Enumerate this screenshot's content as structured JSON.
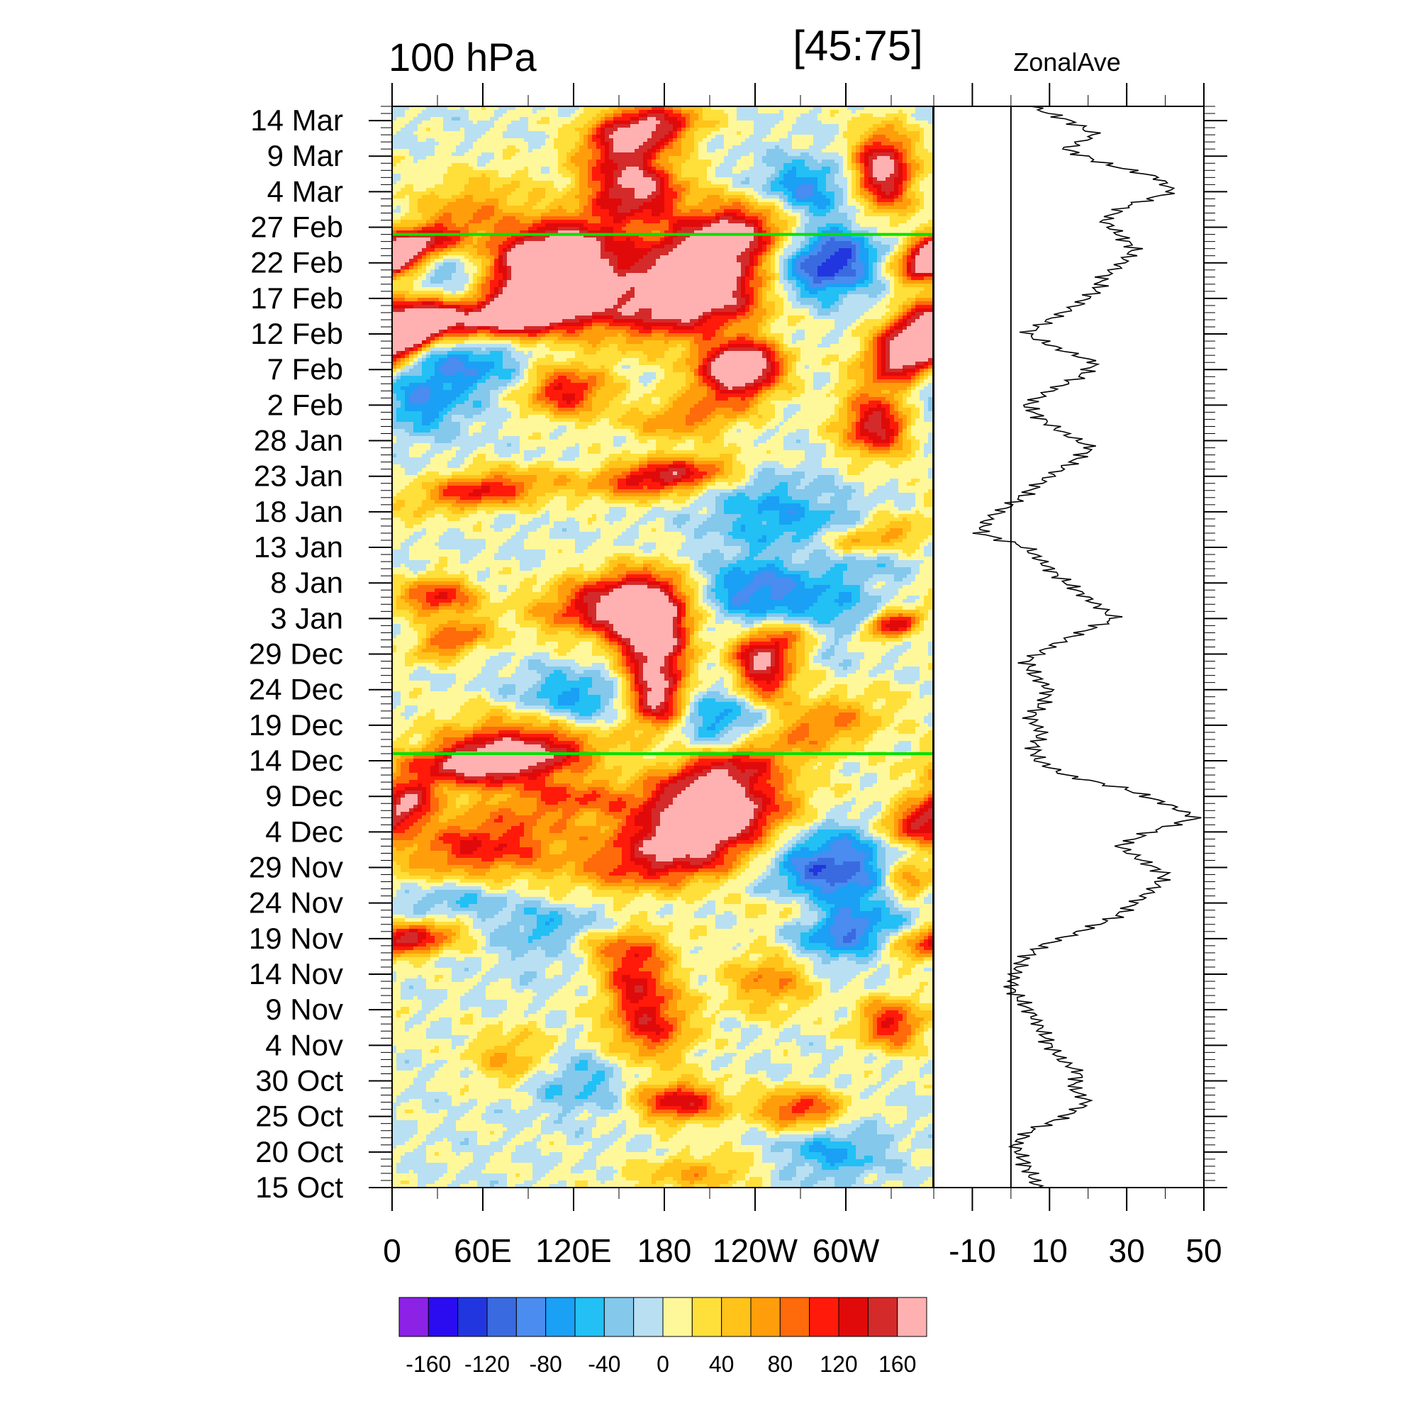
{
  "title_left": "100 hPa",
  "title_center": "[45:75]",
  "zonal_title": "ZonalAve",
  "colors": {
    "frame": "#000000",
    "event_line": "#00e000",
    "palette": [
      "#8b22e6",
      "#2b0bf0",
      "#2236e0",
      "#3a6ae0",
      "#4a8cf0",
      "#1aa0f5",
      "#22c0f5",
      "#84c8ec",
      "#b8e0f2",
      "#fff89a",
      "#ffdf3a",
      "#ffc31a",
      "#ff9e0a",
      "#ff6a0a",
      "#ff1a0a",
      "#e00a0a",
      "#d42a2a",
      "#ffb0b0"
    ],
    "filled_shade": "#ffff88"
  },
  "chart_data": [
    {
      "type": "heatmap",
      "description": "Hovmoller longitude-time contour plot",
      "title": "100 hPa",
      "subtitle": "[45:75]",
      "x_tick_labels": [
        "0",
        "60E",
        "120E",
        "180",
        "120W",
        "60W"
      ],
      "x_ticks_deg": [
        0,
        60,
        120,
        180,
        240,
        300
      ],
      "x_range_deg": [
        0,
        360
      ],
      "y_tick_labels": [
        "15 Oct",
        "20 Oct",
        "25 Oct",
        "30 Oct",
        "4 Nov",
        "9 Nov",
        "14 Nov",
        "19 Nov",
        "24 Nov",
        "29 Nov",
        "4 Dec",
        "9 Dec",
        "14 Dec",
        "19 Dec",
        "24 Dec",
        "29 Dec",
        "3 Jan",
        "8 Jan",
        "13 Jan",
        "18 Jan",
        "23 Jan",
        "28 Jan",
        "2 Feb",
        "7 Feb",
        "12 Feb",
        "17 Feb",
        "22 Feb",
        "27 Feb",
        "4 Mar",
        "9 Mar",
        "14 Mar"
      ],
      "y_range_days": [
        0,
        152
      ],
      "highlight_dates": [
        "15 Dec",
        "26 Feb"
      ],
      "colorbar": {
        "labels": [
          "-160",
          "-120",
          "-80",
          "-40",
          "0",
          "40",
          "80",
          "120",
          "160"
        ],
        "levels": [
          -160,
          -140,
          -120,
          -100,
          -80,
          -60,
          -40,
          -20,
          0,
          20,
          40,
          60,
          80,
          100,
          120,
          140,
          160
        ]
      },
      "blobs": [
        {
          "day": 149,
          "lon": 170,
          "amp": 150,
          "wlon": 22,
          "wday": 2.5,
          "tilt": 3
        },
        {
          "day": 145,
          "lon": 150,
          "amp": 90,
          "wlon": 20,
          "wday": 4,
          "tilt": 0
        },
        {
          "day": 140,
          "lon": 165,
          "amp": 130,
          "wlon": 22,
          "wday": 3,
          "tilt": 0
        },
        {
          "day": 143,
          "lon": 325,
          "amp": 180,
          "wlon": 14,
          "wday": 4,
          "tilt": 0
        },
        {
          "day": 137,
          "lon": 50,
          "amp": 70,
          "wlon": 28,
          "wday": 4,
          "tilt": 2
        },
        {
          "day": 132,
          "lon": 10,
          "amp": 170,
          "wlon": 18,
          "wday": 2,
          "tilt": 5
        },
        {
          "day": 131,
          "lon": 100,
          "amp": 190,
          "wlon": 30,
          "wday": 4,
          "tilt": 4
        },
        {
          "day": 133,
          "lon": 215,
          "amp": 200,
          "wlon": 28,
          "wday": 4,
          "tilt": 4
        },
        {
          "day": 130,
          "lon": 355,
          "amp": 150,
          "wlon": 12,
          "wday": 2,
          "tilt": 2
        },
        {
          "day": 126,
          "lon": 110,
          "amp": 180,
          "wlon": 28,
          "wday": 4,
          "tilt": 3
        },
        {
          "day": 125,
          "lon": 200,
          "amp": 200,
          "wlon": 40,
          "wday": 4,
          "tilt": 4
        },
        {
          "day": 122,
          "lon": 60,
          "amp": 150,
          "wlon": 35,
          "wday": 2,
          "tilt": 6
        },
        {
          "day": 120,
          "lon": 10,
          "amp": 170,
          "wlon": 15,
          "wday": 3,
          "tilt": 4
        },
        {
          "day": 119,
          "lon": 345,
          "amp": 200,
          "wlon": 18,
          "wday": 4,
          "tilt": 3
        },
        {
          "day": 116,
          "lon": 235,
          "amp": 130,
          "wlon": 16,
          "wday": 2,
          "tilt": 0
        },
        {
          "day": 114,
          "lon": 225,
          "amp": 150,
          "wlon": 20,
          "wday": 3,
          "tilt": 0
        },
        {
          "day": 112,
          "lon": 115,
          "amp": 130,
          "wlon": 20,
          "wday": 2.5,
          "tilt": 0
        },
        {
          "day": 107,
          "lon": 320,
          "amp": 150,
          "wlon": 16,
          "wday": 3,
          "tilt": 0
        },
        {
          "day": 108,
          "lon": 190,
          "amp": 80,
          "wlon": 25,
          "wday": 2,
          "tilt": 2
        },
        {
          "day": 100,
          "lon": 180,
          "amp": 150,
          "wlon": 30,
          "wday": 2,
          "tilt": 6
        },
        {
          "day": 98,
          "lon": 60,
          "amp": 120,
          "wlon": 30,
          "wday": 2,
          "tilt": 6
        },
        {
          "day": 91,
          "lon": 310,
          "amp": 120,
          "wlon": 25,
          "wday": 2,
          "tilt": 6
        },
        {
          "day": 83,
          "lon": 30,
          "amp": 120,
          "wlon": 18,
          "wday": 2,
          "tilt": 0
        },
        {
          "day": 82,
          "lon": 140,
          "amp": 140,
          "wlon": 30,
          "wday": 3,
          "tilt": 2
        },
        {
          "day": 80,
          "lon": 170,
          "amp": 190,
          "wlon": 18,
          "wday": 4,
          "tilt": 0
        },
        {
          "day": 77,
          "lon": 40,
          "amp": 100,
          "wlon": 16,
          "wday": 2,
          "tilt": 4
        },
        {
          "day": 78,
          "lon": 270,
          "amp": 80,
          "wlon": 20,
          "wday": 2,
          "tilt": 4
        },
        {
          "day": 79,
          "lon": 330,
          "amp": 140,
          "wlon": 12,
          "wday": 1.5,
          "tilt": 4
        },
        {
          "day": 75,
          "lon": 245,
          "amp": 120,
          "wlon": 14,
          "wday": 2,
          "tilt": 0
        },
        {
          "day": 73,
          "lon": 175,
          "amp": 110,
          "wlon": 15,
          "wday": 4,
          "tilt": 0
        },
        {
          "day": 71,
          "lon": 245,
          "amp": 130,
          "wlon": 16,
          "wday": 2.5,
          "tilt": 0
        },
        {
          "day": 68,
          "lon": 175,
          "amp": 140,
          "wlon": 15,
          "wday": 3,
          "tilt": 0
        },
        {
          "day": 65,
          "lon": 90,
          "amp": 80,
          "wlon": 40,
          "wday": 3,
          "tilt": 3
        },
        {
          "day": 65,
          "lon": 280,
          "amp": 90,
          "wlon": 30,
          "wday": 3,
          "tilt": 4
        },
        {
          "day": 60,
          "lon": 70,
          "amp": 200,
          "wlon": 40,
          "wday": 2.5,
          "tilt": 6
        },
        {
          "day": 58,
          "lon": 215,
          "amp": 160,
          "wlon": 28,
          "wday": 3,
          "tilt": 4
        },
        {
          "day": 55,
          "lon": 120,
          "amp": 80,
          "wlon": 30,
          "wday": 2,
          "tilt": 0
        },
        {
          "day": 54,
          "lon": 10,
          "amp": 150,
          "wlon": 12,
          "wday": 2,
          "tilt": 0
        },
        {
          "day": 52,
          "lon": 210,
          "amp": 200,
          "wlon": 35,
          "wday": 3,
          "tilt": 4
        },
        {
          "day": 51,
          "lon": 345,
          "amp": 130,
          "wlon": 15,
          "wday": 2,
          "tilt": 0
        },
        {
          "day": 48,
          "lon": 60,
          "amp": 120,
          "wlon": 40,
          "wday": 4,
          "tilt": 3
        },
        {
          "day": 46,
          "lon": 185,
          "amp": 130,
          "wlon": 40,
          "wday": 3,
          "tilt": 5
        },
        {
          "day": 43,
          "lon": 340,
          "amp": 80,
          "wlon": 12,
          "wday": 2,
          "tilt": 0
        },
        {
          "day": 39,
          "lon": 270,
          "amp": 60,
          "wlon": 25,
          "wday": 2,
          "tilt": 0
        },
        {
          "day": 35,
          "lon": 10,
          "amp": 150,
          "wlon": 25,
          "wday": 2,
          "tilt": 6
        },
        {
          "day": 34,
          "lon": 140,
          "amp": 80,
          "wlon": 30,
          "wday": 2,
          "tilt": 2
        },
        {
          "day": 30,
          "lon": 160,
          "amp": 100,
          "wlon": 15,
          "wday": 3,
          "tilt": 0
        },
        {
          "day": 29,
          "lon": 250,
          "amp": 80,
          "wlon": 20,
          "wday": 3,
          "tilt": 0
        },
        {
          "day": 23,
          "lon": 170,
          "amp": 120,
          "wlon": 20,
          "wday": 4,
          "tilt": 0
        },
        {
          "day": 23,
          "lon": 330,
          "amp": 120,
          "wlon": 16,
          "wday": 2.5,
          "tilt": 0
        },
        {
          "day": 18,
          "lon": 80,
          "amp": 70,
          "wlon": 20,
          "wday": 3,
          "tilt": 0
        },
        {
          "day": 12,
          "lon": 190,
          "amp": 140,
          "wlon": 20,
          "wday": 2,
          "tilt": 0
        },
        {
          "day": 11,
          "lon": 270,
          "amp": 120,
          "wlon": 20,
          "wday": 2,
          "tilt": 0
        },
        {
          "day": 2,
          "lon": 200,
          "amp": 60,
          "wlon": 30,
          "wday": 2,
          "tilt": 4
        },
        {
          "day": 140,
          "lon": 270,
          "amp": -100,
          "wlon": 22,
          "wday": 3,
          "tilt": 0
        },
        {
          "day": 131,
          "lon": 295,
          "amp": -110,
          "wlon": 20,
          "wday": 3,
          "tilt": 0
        },
        {
          "day": 128,
          "lon": 45,
          "amp": -90,
          "wlon": 22,
          "wday": 3,
          "tilt": 0
        },
        {
          "day": 128,
          "lon": 270,
          "amp": -100,
          "wlon": 24,
          "wday": 3,
          "tilt": 0
        },
        {
          "day": 116,
          "lon": 50,
          "amp": -80,
          "wlon": 30,
          "wday": 3,
          "tilt": 0
        },
        {
          "day": 110,
          "lon": 20,
          "amp": -70,
          "wlon": 20,
          "wday": 3,
          "tilt": 0
        },
        {
          "day": 95,
          "lon": 250,
          "amp": -60,
          "wlon": 30,
          "wday": 4,
          "tilt": 0
        },
        {
          "day": 90,
          "lon": 300,
          "amp": -70,
          "wlon": 25,
          "wday": 3,
          "tilt": 0
        },
        {
          "day": 84,
          "lon": 240,
          "amp": -90,
          "wlon": 25,
          "wday": 3,
          "tilt": 0
        },
        {
          "day": 80,
          "lon": 290,
          "amp": -80,
          "wlon": 20,
          "wday": 3,
          "tilt": 0
        },
        {
          "day": 68,
          "lon": 120,
          "amp": -100,
          "wlon": 30,
          "wday": 3,
          "tilt": 0
        },
        {
          "day": 66,
          "lon": 220,
          "amp": -80,
          "wlon": 30,
          "wday": 4,
          "tilt": 0
        },
        {
          "day": 45,
          "lon": 290,
          "amp": -120,
          "wlon": 30,
          "wday": 4,
          "tilt": 0
        },
        {
          "day": 40,
          "lon": 40,
          "amp": -60,
          "wlon": 30,
          "wday": 3,
          "tilt": 0
        },
        {
          "day": 36,
          "lon": 300,
          "amp": -100,
          "wlon": 25,
          "wday": 3,
          "tilt": 0
        },
        {
          "day": 35,
          "lon": 110,
          "amp": -70,
          "wlon": 25,
          "wday": 3,
          "tilt": 0
        },
        {
          "day": 15,
          "lon": 120,
          "amp": -50,
          "wlon": 30,
          "wday": 3,
          "tilt": 0
        },
        {
          "day": 5,
          "lon": 290,
          "amp": -60,
          "wlon": 25,
          "wday": 3,
          "tilt": 0
        }
      ]
    },
    {
      "type": "line",
      "title": "ZonalAve",
      "x_tick_labels": [
        "-10",
        "10",
        "30",
        "50"
      ],
      "x_ticks": [
        -10,
        10,
        30,
        50
      ],
      "xlim": [
        -20,
        50
      ],
      "zero_line": 0,
      "series": [
        {
          "day": [
            0,
            2,
            4,
            6,
            8,
            10,
            12,
            14,
            16,
            18,
            20,
            22,
            24,
            26,
            28,
            30,
            32,
            34,
            36,
            38,
            40,
            42,
            44,
            46,
            48,
            50,
            52,
            54,
            56,
            58,
            60,
            62,
            64,
            66,
            68,
            70,
            72,
            74,
            76,
            78,
            80,
            82,
            84,
            86,
            88,
            90,
            92,
            94,
            96,
            98,
            100,
            102,
            104,
            106,
            108,
            110,
            112,
            114,
            116,
            118,
            120,
            122,
            124,
            126,
            128,
            130,
            132,
            134,
            136,
            138,
            140,
            142,
            144,
            146,
            148,
            150,
            152
          ],
          "value": [
            7,
            5,
            3,
            1,
            5,
            14,
            20,
            16,
            18,
            13,
            10,
            8,
            6,
            3,
            0,
            1,
            3,
            8,
            18,
            27,
            32,
            37,
            40,
            34,
            28,
            36,
            48,
            40,
            30,
            14,
            7,
            6,
            8,
            5,
            8,
            10,
            6,
            4,
            10,
            18,
            27,
            22,
            17,
            12,
            8,
            4,
            -8,
            -6,
            0,
            5,
            10,
            16,
            21,
            14,
            8,
            4,
            10,
            18,
            22,
            12,
            4,
            10,
            17,
            22,
            24,
            29,
            32,
            28,
            24,
            30,
            42,
            38,
            24,
            14,
            22,
            15,
            5
          ]
        }
      ]
    }
  ]
}
